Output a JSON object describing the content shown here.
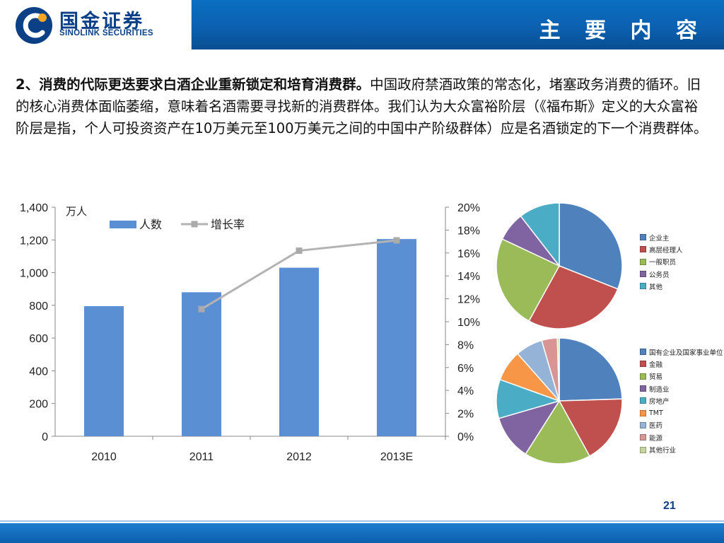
{
  "header": {
    "logo_cn": "国金证券",
    "logo_en": "SINOLINK SECURITIES",
    "title": "主 要 内 容"
  },
  "body": {
    "heading": "2、消费的代际更迭要求白酒企业重新锁定和培育消费群。",
    "text": "中国政府禁酒政策的常态化，堵塞政务消费的循环。旧的核心消费体面临萎缩，意味着名酒需要寻找新的消费群体。我们认为大众富裕阶层（《福布斯》定义的大众富裕阶层是指，个人可投资资产在10万美元至100万美元之间的中国中产阶级群体）应是名酒锁定的下一个消费群体。"
  },
  "page_number": "21",
  "chart_data": [
    {
      "type": "bar",
      "categories": [
        "2010",
        "2011",
        "2012",
        "2013E"
      ],
      "unit_label": "万人",
      "series": [
        {
          "name": "人数",
          "type": "bar",
          "axis": "left",
          "color": "#5b8fd4",
          "values": [
            795,
            880,
            1030,
            1205
          ]
        },
        {
          "name": "增长率",
          "type": "line",
          "axis": "right",
          "color": "#b3b3b3",
          "values": [
            null,
            11.1,
            16.2,
            17.1
          ]
        }
      ],
      "y_left": {
        "min": 0,
        "max": 1400,
        "ticks": [
          "0",
          "200",
          "400",
          "600",
          "800",
          "1,000",
          "1,200",
          "1,400"
        ]
      },
      "y_right": {
        "min": 0,
        "max": 20,
        "ticks": [
          "0%",
          "2%",
          "4%",
          "6%",
          "8%",
          "10%",
          "12%",
          "14%",
          "16%",
          "18%",
          "20%"
        ]
      },
      "legend_placement": "top"
    },
    {
      "type": "pie",
      "slices": [
        {
          "label": "企业主",
          "value": 31,
          "color": "#4f81bd"
        },
        {
          "label": "高层经理人",
          "value": 27,
          "color": "#c0504d"
        },
        {
          "label": "一般职员",
          "value": 24,
          "color": "#9bbb59"
        },
        {
          "label": "公务员",
          "value": 7.5,
          "color": "#8064a2"
        },
        {
          "label": "其他",
          "value": 10.5,
          "color": "#4bacc6"
        }
      ]
    },
    {
      "type": "pie",
      "slices": [
        {
          "label": "国有企业及国家事业单位",
          "value": 24.5,
          "color": "#4f81bd"
        },
        {
          "label": "金融",
          "value": 17.5,
          "color": "#c0504d"
        },
        {
          "label": "贸易",
          "value": 17,
          "color": "#9bbb59"
        },
        {
          "label": "制造业",
          "value": 11.5,
          "color": "#8064a2"
        },
        {
          "label": "房地产",
          "value": 10,
          "color": "#4bacc6"
        },
        {
          "label": "TMT",
          "value": 8,
          "color": "#f79646"
        },
        {
          "label": "医药",
          "value": 7,
          "color": "#95b3d7"
        },
        {
          "label": "能源",
          "value": 4,
          "color": "#d99594"
        },
        {
          "label": "其他行业",
          "value": 0.5,
          "color": "#c3d69b"
        }
      ]
    }
  ]
}
